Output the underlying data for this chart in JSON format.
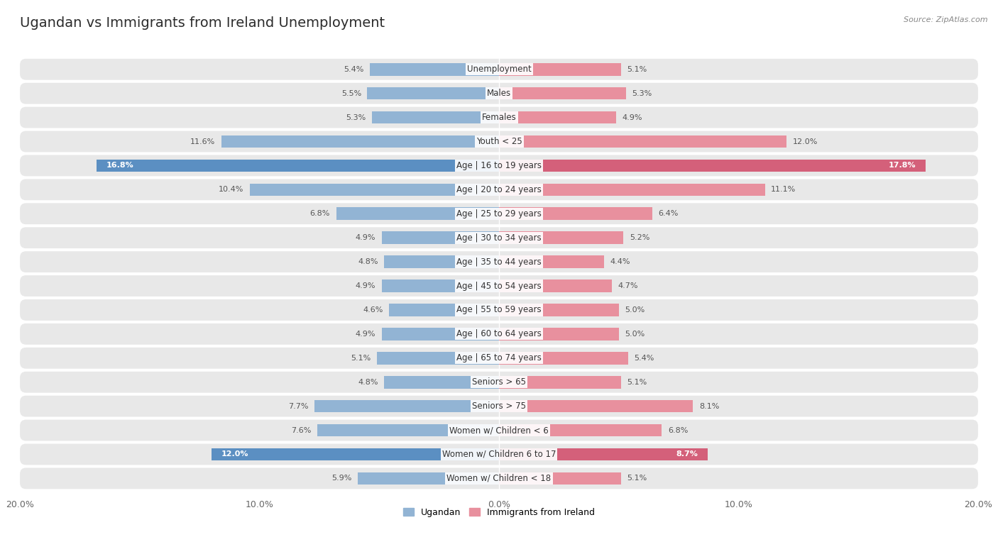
{
  "title": "Ugandan vs Immigrants from Ireland Unemployment",
  "source": "Source: ZipAtlas.com",
  "categories": [
    "Unemployment",
    "Males",
    "Females",
    "Youth < 25",
    "Age | 16 to 19 years",
    "Age | 20 to 24 years",
    "Age | 25 to 29 years",
    "Age | 30 to 34 years",
    "Age | 35 to 44 years",
    "Age | 45 to 54 years",
    "Age | 55 to 59 years",
    "Age | 60 to 64 years",
    "Age | 65 to 74 years",
    "Seniors > 65",
    "Seniors > 75",
    "Women w/ Children < 6",
    "Women w/ Children 6 to 17",
    "Women w/ Children < 18"
  ],
  "ugandan": [
    5.4,
    5.5,
    5.3,
    11.6,
    16.8,
    10.4,
    6.8,
    4.9,
    4.8,
    4.9,
    4.6,
    4.9,
    5.1,
    4.8,
    7.7,
    7.6,
    12.0,
    5.9
  ],
  "ireland": [
    5.1,
    5.3,
    4.9,
    12.0,
    17.8,
    11.1,
    6.4,
    5.2,
    4.4,
    4.7,
    5.0,
    5.0,
    5.4,
    5.1,
    8.1,
    6.8,
    8.7,
    5.1
  ],
  "ugandan_color": "#92b4d4",
  "ireland_color": "#e8909e",
  "ugandan_highlight_color": "#5b8fc2",
  "ireland_highlight_color": "#d4607a",
  "highlight_rows": [
    4,
    16
  ],
  "max_val": 20.0,
  "legend_ugandan": "Ugandan",
  "legend_ireland": "Immigrants from Ireland",
  "bar_height": 0.52,
  "row_bg_color": "#e8e8e8",
  "title_fontsize": 14,
  "label_fontsize": 8.5,
  "value_fontsize": 8.0,
  "tick_fontsize": 9.0,
  "fig_bg": "#ffffff"
}
